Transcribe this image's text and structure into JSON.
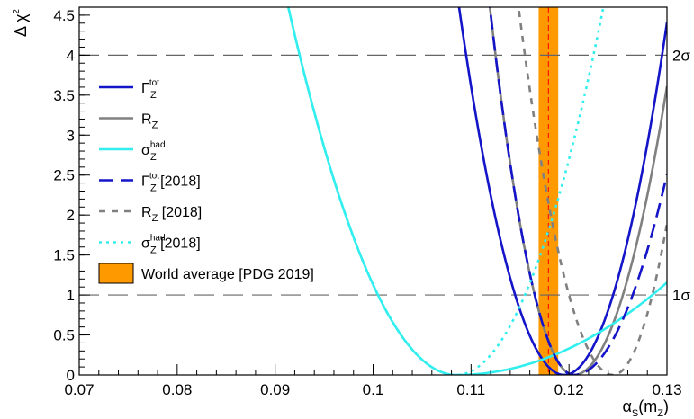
{
  "chart_data": {
    "type": "line",
    "xlabel": {
      "base": "α",
      "sub": "S",
      "rest": "(m",
      "sub2": "Z",
      "close": ")"
    },
    "ylabel": {
      "base": "Δ χ",
      "sup": "2"
    },
    "xlim": [
      0.07,
      0.13
    ],
    "ylim": [
      0,
      4.6
    ],
    "x_ticks": [
      "0.07",
      "0.08",
      "0.09",
      "0.1",
      "0.11",
      "0.12",
      "0.13"
    ],
    "y_ticks": [
      "0",
      "0.5",
      "1",
      "1.5",
      "2",
      "2.5",
      "3",
      "3.5",
      "4",
      "4.5"
    ],
    "reference_lines": [
      {
        "y": 4,
        "label": "2σ"
      },
      {
        "y": 1,
        "label": "1σ"
      }
    ],
    "band": {
      "name": "World average [PDG 2019]",
      "xmin": 0.1169,
      "xmax": 0.1189,
      "center": 0.1179,
      "color": "#ff9900"
    },
    "series": [
      {
        "base": "Γ",
        "sub": "Z",
        "sup": "tot",
        "suffix": "",
        "color": "#1414c8",
        "dash": "solid",
        "width": 2.6,
        "min_x": 0.1195,
        "widths": [
          0.005,
          0.005
        ]
      },
      {
        "base": "R",
        "sub": "Z",
        "sup": "",
        "suffix": "",
        "color": "#808080",
        "dash": "solid",
        "width": 2.6,
        "min_x": 0.1205,
        "widths": [
          0.004,
          0.005
        ]
      },
      {
        "base": "σ",
        "sub": "Z",
        "sup": "had",
        "suffix": "",
        "color": "#33eeee",
        "dash": "solid",
        "width": 2.6,
        "min_x": 0.1085,
        "widths": [
          0.008,
          0.02
        ]
      },
      {
        "base": "Γ",
        "sub": "Z",
        "sup": "tot",
        "suffix": " [2018]",
        "color": "#1414c8",
        "dash": "long",
        "width": 2.6,
        "min_x": 0.1205,
        "widths": [
          0.004,
          0.006
        ]
      },
      {
        "base": "R",
        "sub": "Z",
        "sup": "",
        "suffix": " [2018]",
        "color": "#808080",
        "dash": "short",
        "width": 2.6,
        "min_x": 0.1245,
        "widths": [
          0.0045,
          0.004
        ]
      },
      {
        "base": "σ",
        "sub": "Z",
        "sup": "had",
        "suffix": " [2018]",
        "color": "#33eeee",
        "dash": "dot",
        "width": 2.6,
        "min_x": 0.1085,
        "widths": [
          0.008,
          0.007
        ]
      }
    ]
  }
}
